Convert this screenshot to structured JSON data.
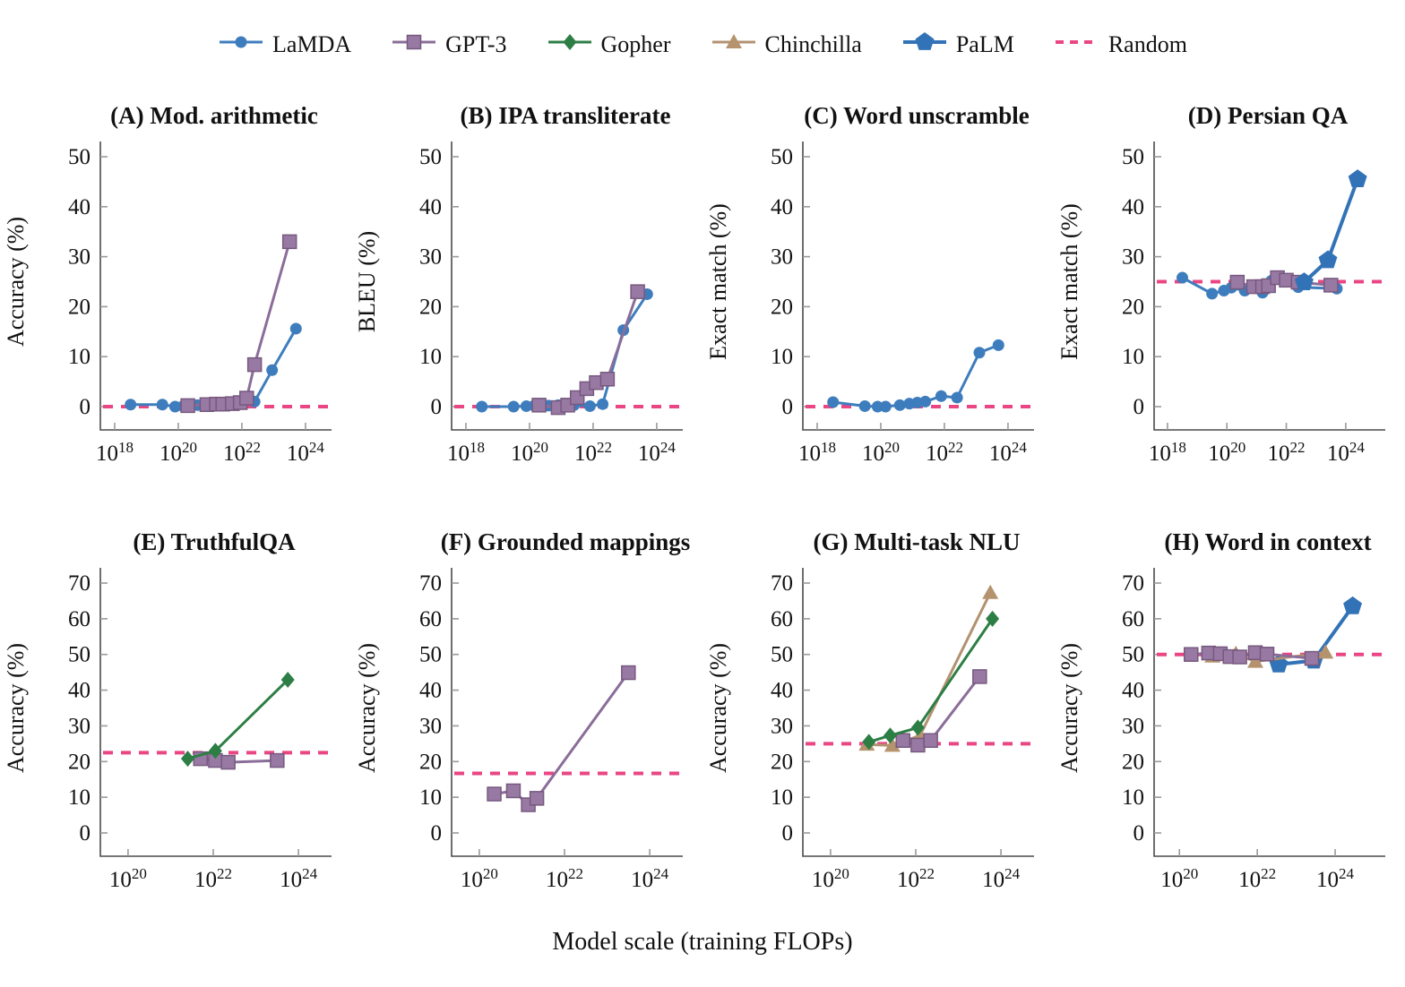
{
  "figure": {
    "legend": [
      {
        "name": "LaMDA",
        "marker": "circle",
        "color": "#3e7dbd"
      },
      {
        "name": "GPT-3",
        "marker": "square",
        "color": "#8a6d98",
        "fill": "#9779a3",
        "edge": "#77597f"
      },
      {
        "name": "Gopher",
        "marker": "diamond",
        "color": "#2d7e45"
      },
      {
        "name": "Chinchilla",
        "marker": "triangle",
        "color": "#b29270",
        "fill": "#b5936e"
      },
      {
        "name": "PaLM",
        "marker": "pentagon",
        "color": "#3273b7"
      },
      {
        "name": "Random",
        "marker": "dashed-line",
        "color": "#e94683"
      }
    ],
    "xlabel": "Model scale (training FLOPs)"
  },
  "chart_data": [
    {
      "id": "A",
      "type": "line",
      "title": "(A) Mod. arithmetic",
      "ylabel": "Accuracy (%)",
      "x_scale": "log10 training FLOPs",
      "x_range": [
        17.55,
        24.65
      ],
      "x_ticks": [
        18,
        20,
        22,
        24
      ],
      "y_range": [
        0,
        50
      ],
      "y_ticks": [
        0,
        10,
        20,
        30,
        40,
        50
      ],
      "random_baseline": 0.0,
      "series": [
        {
          "name": "LaMDA",
          "x_exp": [
            18.5,
            19.5,
            19.9,
            20.15,
            20.6,
            20.9,
            21.15,
            21.4,
            21.9,
            22.4,
            22.95,
            23.7
          ],
          "y": [
            0.4,
            0.4,
            0.0,
            0.1,
            0.3,
            0.5,
            0.6,
            0.7,
            0.9,
            1.0,
            7.3,
            15.6
          ]
        },
        {
          "name": "GPT-3",
          "x_exp": [
            20.3,
            20.9,
            21.2,
            21.4,
            21.7,
            21.95,
            22.15,
            22.4,
            23.5
          ],
          "y": [
            0.2,
            0.4,
            0.5,
            0.5,
            0.6,
            0.8,
            1.7,
            8.4,
            33.0
          ]
        }
      ]
    },
    {
      "id": "B",
      "type": "line",
      "title": "(B) IPA transliterate",
      "ylabel": "BLEU (%)",
      "x_scale": "log10 training FLOPs",
      "x_range": [
        17.55,
        24.65
      ],
      "x_ticks": [
        18,
        20,
        22,
        24
      ],
      "y_range": [
        0,
        50
      ],
      "y_ticks": [
        0,
        10,
        20,
        30,
        40,
        50
      ],
      "random_baseline": 0.0,
      "series": [
        {
          "name": "LaMDA",
          "x_exp": [
            18.5,
            19.5,
            19.9,
            20.15,
            20.6,
            20.9,
            21.15,
            21.4,
            21.9,
            22.3,
            22.95,
            23.7
          ],
          "y": [
            0.0,
            0.0,
            0.1,
            0.2,
            0.2,
            0.3,
            0.2,
            0.3,
            0.1,
            0.5,
            15.3,
            22.5
          ]
        },
        {
          "name": "GPT-3",
          "x_exp": [
            20.3,
            20.9,
            21.2,
            21.5,
            21.8,
            22.1,
            22.45,
            23.4
          ],
          "y": [
            0.3,
            -0.2,
            0.3,
            1.8,
            3.6,
            4.8,
            5.5,
            23.0
          ]
        }
      ]
    },
    {
      "id": "C",
      "type": "line",
      "title": "(C) Word unscramble",
      "ylabel": "Exact match (%)",
      "x_scale": "log10 training FLOPs",
      "x_range": [
        17.55,
        24.65
      ],
      "x_ticks": [
        18,
        20,
        22,
        24
      ],
      "y_range": [
        0,
        50
      ],
      "y_ticks": [
        0,
        10,
        20,
        30,
        40,
        50
      ],
      "random_baseline": 0.0,
      "series": [
        {
          "name": "LaMDA",
          "x_exp": [
            18.5,
            19.5,
            19.9,
            20.15,
            20.6,
            20.9,
            21.15,
            21.4,
            21.9,
            22.4,
            23.1,
            23.7
          ],
          "y": [
            0.9,
            0.1,
            0.0,
            0.0,
            0.3,
            0.6,
            0.8,
            1.0,
            2.1,
            1.8,
            10.8,
            12.3
          ]
        }
      ]
    },
    {
      "id": "D",
      "type": "line",
      "title": "(D) Persian QA",
      "ylabel": "Exact match (%)",
      "x_scale": "log10 training FLOPs",
      "x_range": [
        17.55,
        25.15
      ],
      "x_ticks": [
        18,
        20,
        22,
        24
      ],
      "y_range": [
        0,
        50
      ],
      "y_ticks": [
        0,
        10,
        20,
        30,
        40,
        50
      ],
      "random_baseline": 25.0,
      "series": [
        {
          "name": "LaMDA",
          "x_exp": [
            18.5,
            19.5,
            19.9,
            20.15,
            20.6,
            20.9,
            21.2,
            21.5,
            21.9,
            22.4,
            23.7
          ],
          "y": [
            25.8,
            22.6,
            23.2,
            23.8,
            23.2,
            24.0,
            22.8,
            25.2,
            25.5,
            23.9,
            23.6
          ]
        },
        {
          "name": "GPT-3",
          "x_exp": [
            20.35,
            20.9,
            21.2,
            21.4,
            21.7,
            22.0,
            22.4,
            23.5
          ],
          "y": [
            24.9,
            24.0,
            24.0,
            24.2,
            25.8,
            25.3,
            24.9,
            24.3
          ]
        },
        {
          "name": "PaLM",
          "x_exp": [
            22.6,
            23.4,
            24.4
          ],
          "y": [
            24.9,
            29.3,
            45.5
          ]
        }
      ]
    },
    {
      "id": "E",
      "type": "line",
      "title": "(E) TruthfulQA",
      "ylabel": "Accuracy (%)",
      "x_scale": "log10 training FLOPs",
      "x_range": [
        19.35,
        24.65
      ],
      "x_ticks": [
        20,
        22,
        24
      ],
      "y_range": [
        0,
        70
      ],
      "y_ticks": [
        0,
        10,
        20,
        30,
        40,
        50,
        60,
        70
      ],
      "random_baseline": 22.5,
      "series": [
        {
          "name": "GPT-3",
          "x_exp": [
            21.7,
            22.05,
            22.35,
            23.5
          ],
          "y": [
            20.8,
            20.3,
            19.8,
            20.3
          ]
        },
        {
          "name": "Gopher",
          "x_exp": [
            21.4,
            22.05,
            23.75
          ],
          "y": [
            20.8,
            23.0,
            42.9
          ]
        }
      ]
    },
    {
      "id": "F",
      "type": "line",
      "title": "(F) Grounded mappings",
      "ylabel": "Accuracy (%)",
      "x_scale": "log10 training FLOPs",
      "x_range": [
        19.35,
        24.65
      ],
      "x_ticks": [
        20,
        22,
        24
      ],
      "y_range": [
        0,
        70
      ],
      "y_ticks": [
        0,
        10,
        20,
        30,
        40,
        50,
        60,
        70
      ],
      "random_baseline": 16.7,
      "series": [
        {
          "name": "GPT-3",
          "x_exp": [
            20.35,
            20.8,
            21.15,
            21.35,
            23.5
          ],
          "y": [
            10.9,
            11.8,
            7.9,
            9.7,
            44.9
          ]
        }
      ]
    },
    {
      "id": "G",
      "type": "line",
      "title": "(G) Multi-task NLU",
      "ylabel": "Accuracy (%)",
      "x_scale": "log10 training FLOPs",
      "x_range": [
        19.35,
        24.65
      ],
      "x_ticks": [
        20,
        22,
        24
      ],
      "y_range": [
        0,
        70
      ],
      "y_ticks": [
        0,
        10,
        20,
        30,
        40,
        50,
        60,
        70
      ],
      "random_baseline": 25.0,
      "series": [
        {
          "name": "Chinchilla",
          "x_exp": [
            20.85,
            21.45,
            22.1,
            23.75
          ],
          "y": [
            24.8,
            24.5,
            27.3,
            67.3
          ]
        },
        {
          "name": "GPT-3",
          "x_exp": [
            21.7,
            22.05,
            22.35,
            23.5
          ],
          "y": [
            25.9,
            24.6,
            25.9,
            43.8
          ]
        },
        {
          "name": "Gopher",
          "x_exp": [
            20.9,
            21.4,
            22.05,
            23.8
          ],
          "y": [
            25.5,
            27.3,
            29.5,
            60.0
          ]
        }
      ]
    },
    {
      "id": "H",
      "type": "line",
      "title": "(H) Word in context",
      "ylabel": "Accuracy (%)",
      "x_scale": "log10 training FLOPs",
      "x_range": [
        19.35,
        25.15
      ],
      "x_ticks": [
        20,
        22,
        24
      ],
      "y_range": [
        0,
        70
      ],
      "y_ticks": [
        0,
        10,
        20,
        30,
        40,
        50,
        60,
        70
      ],
      "random_baseline": 50.0,
      "series": [
        {
          "name": "PaLM",
          "x_exp": [
            22.55,
            23.45,
            24.45
          ],
          "y": [
            47.2,
            48.3,
            63.5
          ]
        },
        {
          "name": "Chinchilla",
          "x_exp": [
            20.85,
            21.45,
            21.95,
            23.75
          ],
          "y": [
            49.5,
            50.2,
            48.0,
            50.6
          ]
        },
        {
          "name": "GPT-3",
          "x_exp": [
            20.3,
            20.75,
            21.05,
            21.3,
            21.55,
            21.95,
            22.25,
            23.4
          ],
          "y": [
            50.0,
            50.4,
            50.2,
            49.4,
            49.3,
            50.5,
            50.1,
            48.9
          ]
        }
      ]
    }
  ]
}
